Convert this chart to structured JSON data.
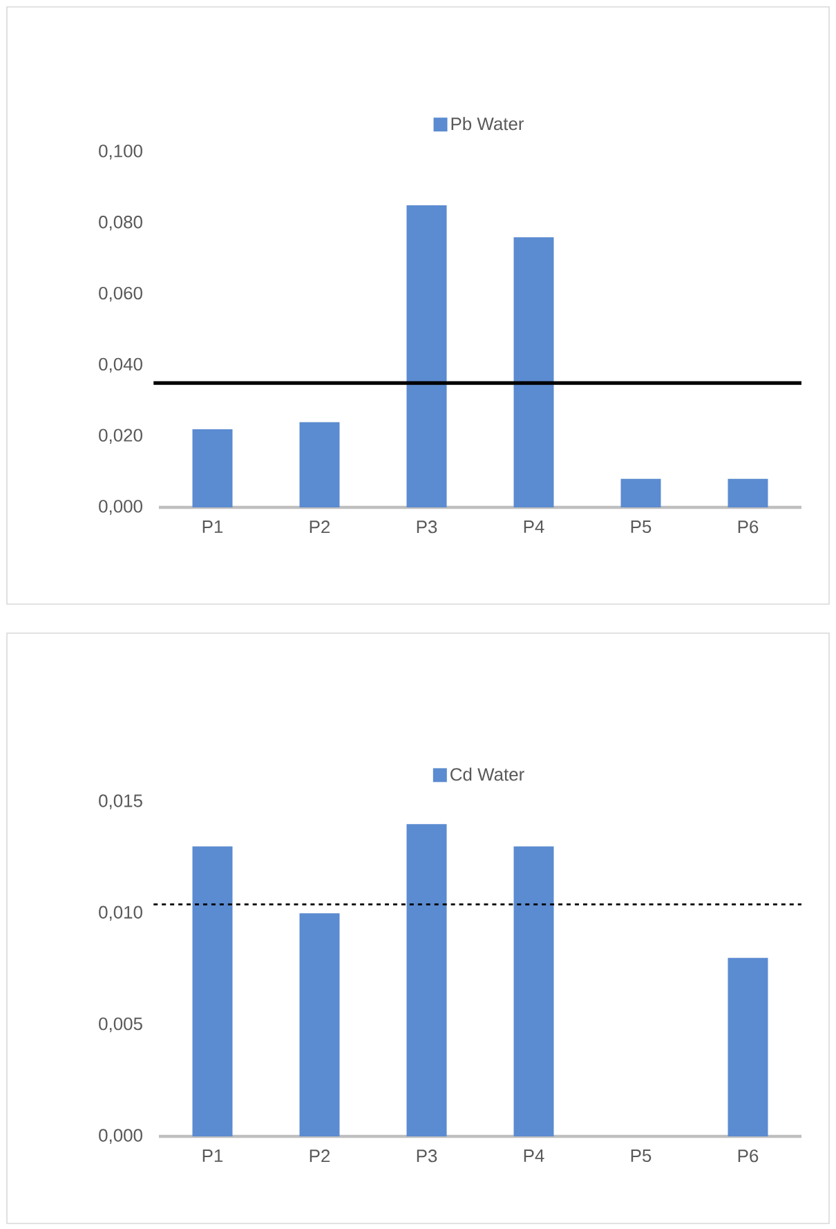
{
  "chart_data": [
    {
      "type": "bar",
      "legend": "top",
      "categories": [
        "P1",
        "P2",
        "P3",
        "P4",
        "P5",
        "P6"
      ],
      "series": [
        {
          "name": "Pb Water",
          "color": "#5b8bd0",
          "values": [
            0.022,
            0.024,
            0.085,
            0.076,
            0.008,
            0.008
          ]
        }
      ],
      "ylim": [
        0,
        0.1
      ],
      "yticks": [
        {
          "value": 0,
          "label": "0,000"
        },
        {
          "value": 0.02,
          "label": "0,020"
        },
        {
          "value": 0.04,
          "label": "0,040"
        },
        {
          "value": 0.06,
          "label": "0,060"
        },
        {
          "value": 0.08,
          "label": "0,080"
        },
        {
          "value": 0.1,
          "label": "0,100"
        }
      ],
      "ref_lines": [
        {
          "axis": "y",
          "value": 0.035,
          "line_style": "solid",
          "color": "#000000"
        }
      ]
    },
    {
      "type": "bar",
      "legend": "top",
      "categories": [
        "P1",
        "P2",
        "P3",
        "P4",
        "P5",
        "P6"
      ],
      "series": [
        {
          "name": "Cd Water",
          "color": "#5b8bd0",
          "values": [
            0.013,
            0.01,
            0.014,
            0.013,
            0,
            0.008
          ]
        }
      ],
      "ylim": [
        0,
        0.015
      ],
      "yticks": [
        {
          "value": 0,
          "label": "0,000"
        },
        {
          "value": 0.005,
          "label": "0,005"
        },
        {
          "value": 0.01,
          "label": "0,010"
        },
        {
          "value": 0.015,
          "label": "0,015"
        }
      ],
      "ref_lines": [
        {
          "axis": "y",
          "value": 0.0104,
          "line_style": "dashed",
          "color": "#000000"
        }
      ]
    }
  ]
}
